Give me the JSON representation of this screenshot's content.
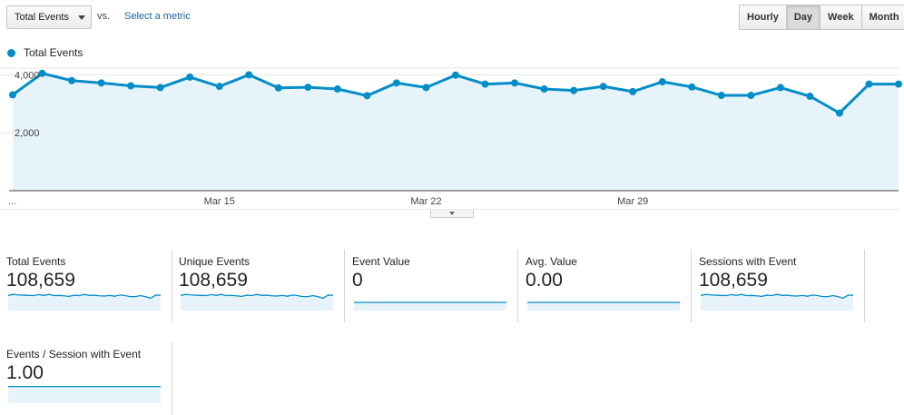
{
  "toolbar": {
    "metric_select": "Total Events",
    "vs_label": "vs.",
    "select_metric_link": "Select a metric",
    "granularity": [
      "Hourly",
      "Day",
      "Week",
      "Month"
    ],
    "active_granularity": "Day"
  },
  "colors": {
    "line": "#058dc7",
    "fill": "#e6f3fa",
    "grid": "#e5e5e5"
  },
  "chart_data": {
    "type": "area",
    "legend": [
      "Total Events"
    ],
    "legend_position": "top-left",
    "x_tick_labels": [
      "Mar 15",
      "Mar 22",
      "Mar 29"
    ],
    "x_tick_indices": [
      7,
      14,
      21
    ],
    "leading_label": "...",
    "y_tick_labels": [
      "4,000",
      "2,000"
    ],
    "y_tick_values": [
      4000,
      2000
    ],
    "ylim": [
      0,
      4200
    ],
    "grid": true,
    "series": [
      {
        "name": "Total Events",
        "values": [
          3310,
          4050,
          3800,
          3720,
          3620,
          3560,
          3920,
          3600,
          4000,
          3550,
          3570,
          3510,
          3280,
          3720,
          3560,
          3990,
          3680,
          3720,
          3510,
          3460,
          3600,
          3420,
          3760,
          3580,
          3290,
          3290,
          3560,
          3260,
          2680,
          3680,
          3680
        ]
      }
    ]
  },
  "cards": [
    {
      "label": "Total Events",
      "value": "108,659",
      "spark": [
        0.7,
        0.8,
        0.75,
        0.72,
        0.7,
        0.68,
        0.78,
        0.7,
        0.8,
        0.68,
        0.7,
        0.66,
        0.6,
        0.72,
        0.68,
        0.8,
        0.7,
        0.72,
        0.66,
        0.64,
        0.7,
        0.62,
        0.74,
        0.68,
        0.58,
        0.58,
        0.68,
        0.58,
        0.42,
        0.72,
        0.72
      ]
    },
    {
      "label": "Unique Events",
      "value": "108,659",
      "spark": [
        0.7,
        0.8,
        0.75,
        0.72,
        0.7,
        0.68,
        0.78,
        0.7,
        0.8,
        0.68,
        0.7,
        0.66,
        0.6,
        0.72,
        0.68,
        0.8,
        0.7,
        0.72,
        0.66,
        0.64,
        0.7,
        0.62,
        0.74,
        0.68,
        0.58,
        0.58,
        0.68,
        0.58,
        0.42,
        0.72,
        0.72
      ]
    },
    {
      "label": "Event Value",
      "value": "0",
      "spark": [
        0,
        0,
        0,
        0,
        0,
        0,
        0,
        0,
        0,
        0
      ]
    },
    {
      "label": "Avg. Value",
      "value": "0.00",
      "spark": [
        0,
        0,
        0,
        0,
        0,
        0,
        0,
        0,
        0,
        0
      ]
    },
    {
      "label": "Sessions with Event",
      "value": "108,659",
      "spark": [
        0.7,
        0.8,
        0.75,
        0.72,
        0.7,
        0.68,
        0.78,
        0.7,
        0.8,
        0.68,
        0.7,
        0.66,
        0.6,
        0.72,
        0.68,
        0.8,
        0.7,
        0.72,
        0.66,
        0.64,
        0.7,
        0.62,
        0.74,
        0.68,
        0.58,
        0.58,
        0.68,
        0.58,
        0.42,
        0.72,
        0.72
      ]
    },
    {
      "label": "Events / Session with Event",
      "value": "1.00",
      "spark": [
        0.85,
        0.85,
        0.85,
        0.85,
        0.85,
        0.85,
        0.85,
        0.85,
        0.85,
        0.85
      ]
    }
  ]
}
